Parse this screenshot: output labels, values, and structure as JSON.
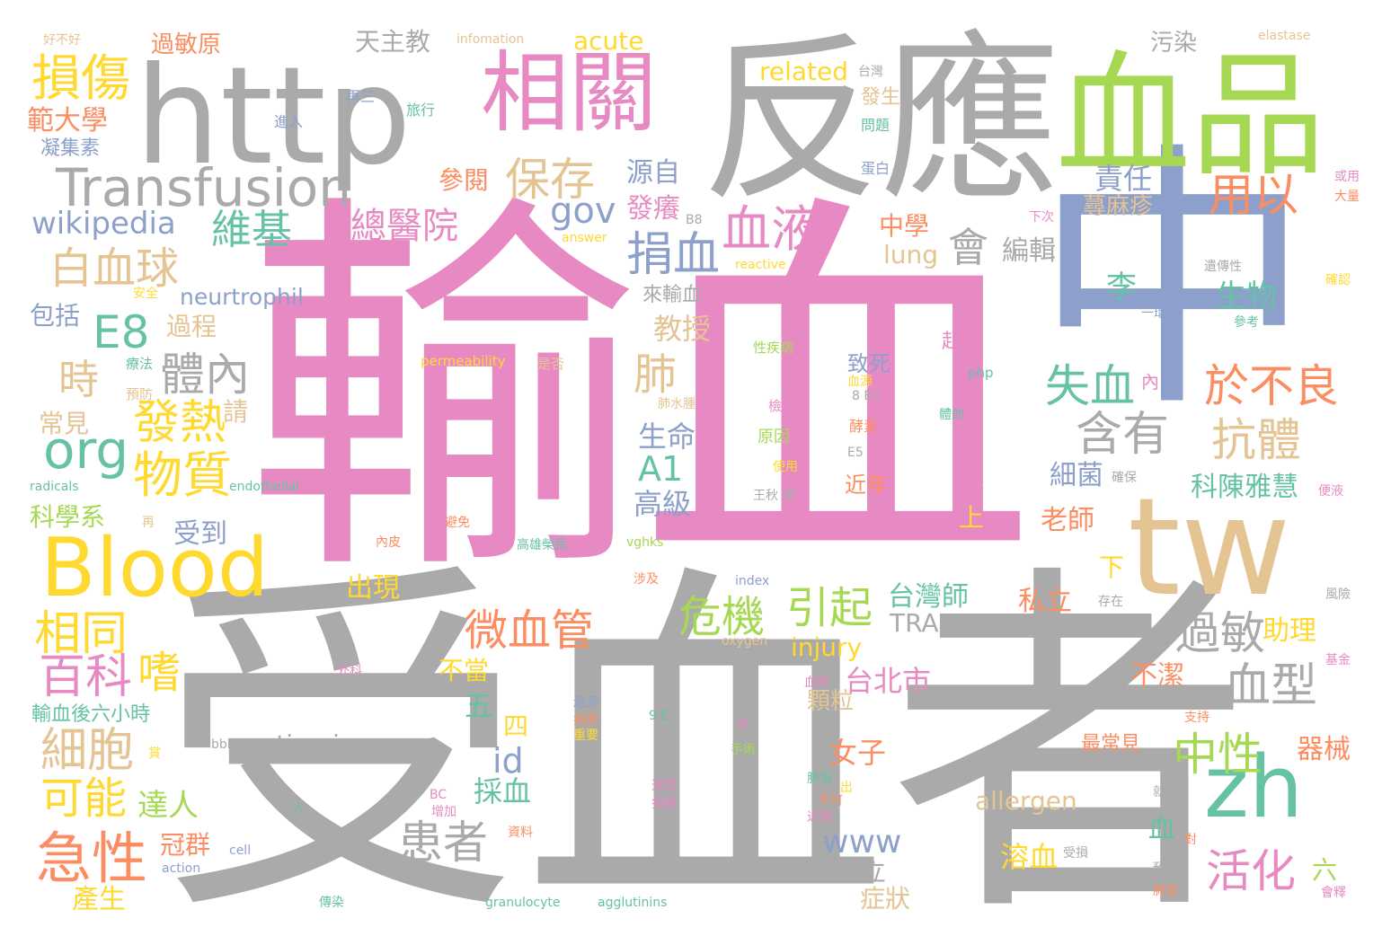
{
  "colors": {
    "gray": "#aaaaaa",
    "pink": "#e78ac3",
    "green": "#a6d854",
    "blue": "#8da0cb",
    "tan": "#e5c494",
    "yellow": "#ffd92f",
    "teal": "#66c2a5",
    "orange": "#fc8d62",
    "background": "#ffffff"
  },
  "words": [
    {
      "text": "輸血",
      "color": "pink"
    },
    {
      "text": "受血者",
      "color": "gray"
    },
    {
      "text": "中",
      "color": "blue"
    },
    {
      "text": "反應",
      "color": "gray"
    },
    {
      "text": "http",
      "color": "gray"
    },
    {
      "text": "血品",
      "color": "green"
    },
    {
      "text": "tw",
      "color": "tan"
    },
    {
      "text": "相關",
      "color": "pink"
    },
    {
      "text": "Blood",
      "color": "yellow"
    },
    {
      "text": "zh",
      "color": "teal"
    },
    {
      "text": "Transfusion",
      "color": "gray"
    },
    {
      "text": "損傷",
      "color": "yellow"
    },
    {
      "text": "wikipedia",
      "color": "blue"
    },
    {
      "text": "保存",
      "color": "tan"
    },
    {
      "text": "維基",
      "color": "teal"
    },
    {
      "text": "血液",
      "color": "pink"
    },
    {
      "text": "用以",
      "color": "orange"
    },
    {
      "text": "白血球",
      "color": "tan"
    },
    {
      "text": "E8",
      "color": "teal"
    },
    {
      "text": "org",
      "color": "teal"
    },
    {
      "text": "發熱",
      "color": "yellow"
    },
    {
      "text": "物質",
      "color": "yellow"
    },
    {
      "text": "捐血",
      "color": "blue"
    },
    {
      "text": "失血",
      "color": "teal"
    },
    {
      "text": "於不良",
      "color": "orange"
    },
    {
      "text": "含有",
      "color": "gray"
    },
    {
      "text": "抗體",
      "color": "tan"
    },
    {
      "text": "過敏",
      "color": "gray"
    },
    {
      "text": "血型",
      "color": "gray"
    },
    {
      "text": "中性",
      "color": "green"
    },
    {
      "text": "活化",
      "color": "pink"
    },
    {
      "text": "危機",
      "color": "green"
    },
    {
      "text": "引起",
      "color": "green"
    },
    {
      "text": "微血管",
      "color": "orange"
    },
    {
      "text": "相同",
      "color": "yellow"
    },
    {
      "text": "百科",
      "color": "pink"
    },
    {
      "text": "嗜",
      "color": "yellow"
    },
    {
      "text": "細胞",
      "color": "tan"
    },
    {
      "text": "可能",
      "color": "yellow"
    },
    {
      "text": "急性",
      "color": "orange"
    },
    {
      "text": "患者",
      "color": "gray"
    },
    {
      "text": "體內",
      "color": "gray"
    },
    {
      "text": "時",
      "color": "tan"
    },
    {
      "text": "肺",
      "color": "tan"
    },
    {
      "text": "會",
      "color": "gray"
    },
    {
      "text": "gov",
      "color": "blue"
    },
    {
      "text": "總醫院",
      "color": "pink"
    },
    {
      "text": "id",
      "color": "blue"
    },
    {
      "text": "www",
      "color": "blue"
    },
    {
      "text": "A1",
      "color": "teal"
    },
    {
      "text": "acute",
      "color": "yellow"
    },
    {
      "text": "天主教",
      "color": "gray"
    },
    {
      "text": "過敏原",
      "color": "orange"
    },
    {
      "text": "範大學",
      "color": "orange"
    },
    {
      "text": "凝集素",
      "color": "blue"
    },
    {
      "text": "related",
      "color": "yellow"
    },
    {
      "text": "污染",
      "color": "gray"
    },
    {
      "text": "責任",
      "color": "blue"
    },
    {
      "text": "蕁麻疹",
      "color": "tan"
    },
    {
      "text": "中學",
      "color": "orange"
    },
    {
      "text": "lung",
      "color": "tan"
    },
    {
      "text": "編輯",
      "color": "gray"
    },
    {
      "text": "李",
      "color": "teal"
    },
    {
      "text": "生物",
      "color": "teal"
    },
    {
      "text": "參閱",
      "color": "orange"
    },
    {
      "text": "源自",
      "color": "blue"
    },
    {
      "text": "發癢",
      "color": "pink"
    },
    {
      "text": "neurtrophil",
      "color": "blue"
    },
    {
      "text": "包括",
      "color": "blue"
    },
    {
      "text": "過程",
      "color": "tan"
    },
    {
      "text": "教授",
      "color": "tan"
    },
    {
      "text": "生命",
      "color": "blue"
    },
    {
      "text": "高級",
      "color": "blue"
    },
    {
      "text": "常見",
      "color": "tan"
    },
    {
      "text": "請",
      "color": "tan"
    },
    {
      "text": "科學系",
      "color": "green"
    },
    {
      "text": "受到",
      "color": "blue"
    },
    {
      "text": "出現",
      "color": "yellow"
    },
    {
      "text": "台灣師",
      "color": "teal"
    },
    {
      "text": "TRALI",
      "color": "gray"
    },
    {
      "text": "injury",
      "color": "yellow"
    },
    {
      "text": "台北市",
      "color": "pink"
    },
    {
      "text": "不當",
      "color": "yellow"
    },
    {
      "text": "五",
      "color": "teal"
    },
    {
      "text": "四",
      "color": "yellow"
    },
    {
      "text": "urticaria",
      "color": "gray"
    },
    {
      "text": "達人",
      "color": "green"
    },
    {
      "text": "冠群",
      "color": "orange"
    },
    {
      "text": "採血",
      "color": "teal"
    },
    {
      "text": "產生",
      "color": "yellow"
    },
    {
      "text": "女子",
      "color": "orange"
    },
    {
      "text": "顆粒",
      "color": "tan"
    },
    {
      "text": "allergen",
      "color": "tan"
    },
    {
      "text": "溶血",
      "color": "yellow"
    },
    {
      "text": "國立",
      "color": "gray"
    },
    {
      "text": "症狀",
      "color": "tan"
    },
    {
      "text": "血",
      "color": "teal"
    },
    {
      "text": "六",
      "color": "green"
    },
    {
      "text": "私立",
      "color": "orange"
    },
    {
      "text": "助理",
      "color": "yellow"
    },
    {
      "text": "不潔",
      "color": "orange"
    },
    {
      "text": "器械",
      "color": "orange"
    },
    {
      "text": "細菌",
      "color": "blue"
    },
    {
      "text": "科陳雅慧",
      "color": "teal"
    },
    {
      "text": "老師",
      "color": "orange"
    },
    {
      "text": "上",
      "color": "yellow"
    },
    {
      "text": "下",
      "color": "yellow"
    },
    {
      "text": "近年",
      "color": "orange"
    },
    {
      "text": "致死",
      "color": "blue"
    },
    {
      "text": "起因",
      "color": "pink"
    },
    {
      "text": "來輸血",
      "color": "gray"
    },
    {
      "text": "發生",
      "color": "tan"
    },
    {
      "text": "最常見",
      "color": "orange"
    },
    {
      "text": "好不好",
      "color": "tan"
    },
    {
      "text": "infomation",
      "color": "tan"
    },
    {
      "text": "elastase",
      "color": "tan"
    },
    {
      "text": "台灣",
      "color": "gray"
    },
    {
      "text": "再三",
      "color": "blue"
    },
    {
      "text": "旅行",
      "color": "teal"
    },
    {
      "text": "進入",
      "color": "blue"
    },
    {
      "text": "問題",
      "color": "teal"
    },
    {
      "text": "蛋白",
      "color": "blue"
    },
    {
      "text": "或用",
      "color": "pink"
    },
    {
      "text": "大量",
      "color": "orange"
    },
    {
      "text": "下次",
      "color": "pink"
    },
    {
      "text": "B8",
      "color": "gray"
    },
    {
      "text": "answer",
      "color": "yellow"
    },
    {
      "text": "reactive",
      "color": "yellow"
    },
    {
      "text": "遺傳性",
      "color": "gray"
    },
    {
      "text": "確認",
      "color": "yellow"
    },
    {
      "text": "安全",
      "color": "yellow"
    },
    {
      "text": "一環",
      "color": "blue"
    },
    {
      "text": "參考",
      "color": "teal"
    },
    {
      "text": "性疾病",
      "color": "green"
    },
    {
      "text": "permeability",
      "color": "yellow"
    },
    {
      "text": "是否",
      "color": "tan"
    },
    {
      "text": "php",
      "color": "teal"
    },
    {
      "text": "療法",
      "color": "teal"
    },
    {
      "text": "預防",
      "color": "tan"
    },
    {
      "text": "肺水腫",
      "color": "tan"
    },
    {
      "text": "血源",
      "color": "yellow"
    },
    {
      "text": "8 B2",
      "color": "gray"
    },
    {
      "text": "內",
      "color": "pink"
    },
    {
      "text": "檢驗",
      "color": "pink"
    },
    {
      "text": "酵素",
      "color": "orange"
    },
    {
      "text": "體的",
      "color": "teal"
    },
    {
      "text": "原因",
      "color": "green"
    },
    {
      "text": "E5",
      "color": "gray"
    },
    {
      "text": "使用",
      "color": "yellow"
    },
    {
      "text": "radicals",
      "color": "teal"
    },
    {
      "text": "endothelial",
      "color": "teal"
    },
    {
      "text": "王秋 華",
      "color": "gray"
    },
    {
      "text": "外傷",
      "color": "pink"
    },
    {
      "text": "確保",
      "color": "gray"
    },
    {
      "text": "便液",
      "color": "pink"
    },
    {
      "text": "再",
      "color": "tan"
    },
    {
      "text": "避免",
      "color": "orange"
    },
    {
      "text": "內皮",
      "color": "orange"
    },
    {
      "text": "高雄榮民",
      "color": "teal"
    },
    {
      "text": "vghks",
      "color": "green"
    },
    {
      "text": "涉及",
      "color": "orange"
    },
    {
      "text": "index",
      "color": "blue"
    },
    {
      "text": "存在",
      "color": "gray"
    },
    {
      "text": "風險",
      "color": "gray"
    },
    {
      "text": "oxygen",
      "color": "tan"
    },
    {
      "text": "外科",
      "color": "pink"
    },
    {
      "text": "血庫",
      "color": "pink"
    },
    {
      "text": "基金",
      "color": "pink"
    },
    {
      "text": "輸血後六小時",
      "color": "teal"
    },
    {
      "text": "過多",
      "color": "blue"
    },
    {
      "text": "病原",
      "color": "orange"
    },
    {
      "text": "9 E",
      "color": "teal"
    },
    {
      "text": "很",
      "color": "pink"
    },
    {
      "text": "支持",
      "color": "orange"
    },
    {
      "text": "重要",
      "color": "yellow"
    },
    {
      "text": "bbk",
      "color": "gray"
    },
    {
      "text": "手術",
      "color": "green"
    },
    {
      "text": "通常",
      "color": "pink"
    },
    {
      "text": "捐贈",
      "color": "pink"
    },
    {
      "text": "肺泡",
      "color": "teal"
    },
    {
      "text": "不可",
      "color": "orange"
    },
    {
      "text": "出",
      "color": "yellow"
    },
    {
      "text": "BC",
      "color": "pink"
    },
    {
      "text": "增加",
      "color": "pink"
    },
    {
      "text": "人",
      "color": "teal"
    },
    {
      "text": "資料",
      "color": "orange"
    },
    {
      "text": "近親",
      "color": "pink"
    },
    {
      "text": "就要",
      "color": "gray"
    },
    {
      "text": "賞",
      "color": "yellow"
    },
    {
      "text": "cell",
      "color": "blue"
    },
    {
      "text": "action",
      "color": "blue"
    },
    {
      "text": "受損",
      "color": "gray"
    },
    {
      "text": "對",
      "color": "orange"
    },
    {
      "text": "預期",
      "color": "gray"
    },
    {
      "text": "肺部",
      "color": "orange"
    },
    {
      "text": "會釋",
      "color": "pink"
    },
    {
      "text": "傳染",
      "color": "teal"
    },
    {
      "text": "granulocyte",
      "color": "teal"
    },
    {
      "text": "agglutinins",
      "color": "teal"
    }
  ]
}
